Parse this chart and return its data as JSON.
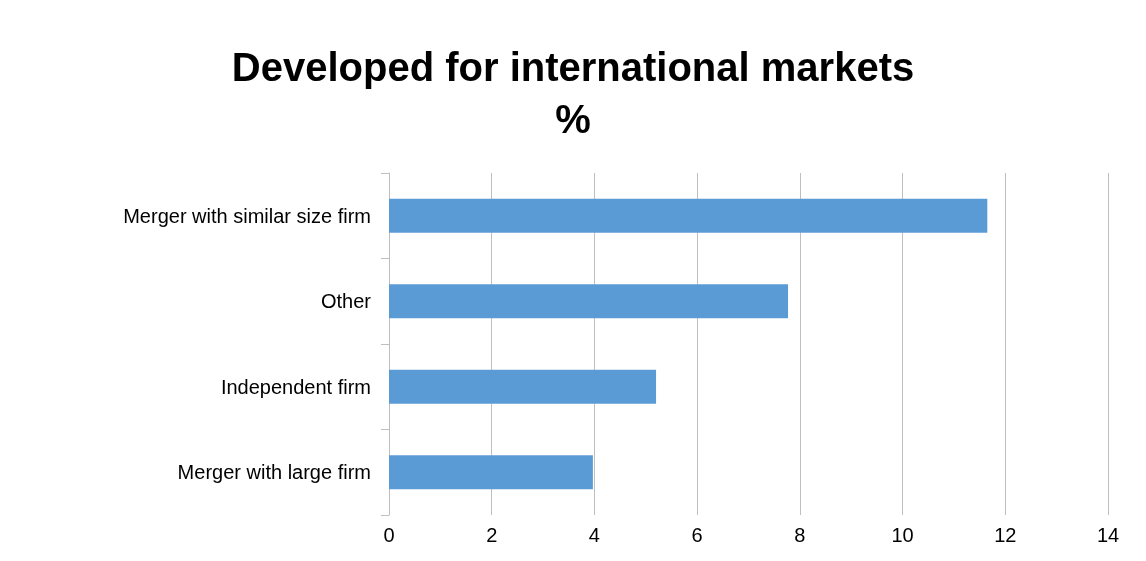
{
  "chart_data": {
    "type": "bar",
    "orientation": "horizontal",
    "title": "Developed for international markets\n%",
    "categories": [
      "Merger with similar size firm",
      "Other",
      "Independent firm",
      "Merger with large firm"
    ],
    "values": [
      11.65,
      7.77,
      5.2,
      3.97
    ],
    "color": "#5b9bd5",
    "xlim": [
      0,
      14
    ],
    "xticks": [
      0,
      2,
      4,
      6,
      8,
      10,
      12,
      14
    ],
    "grid": "x"
  }
}
